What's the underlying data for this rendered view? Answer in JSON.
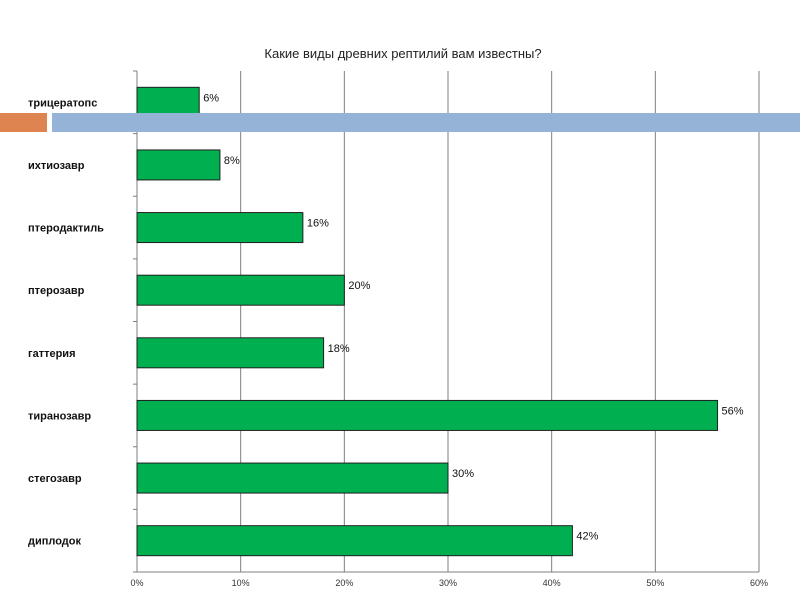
{
  "chart_data": {
    "type": "bar",
    "orientation": "horizontal",
    "title": "Какие виды древних рептилий вам известны?",
    "categories": [
      "трицератопс",
      "ихтиозавр",
      "птеродактиль",
      "птерозавр",
      "гаттерия",
      "тиранозавр",
      "стегозавр",
      "диплодок"
    ],
    "values": [
      6,
      8,
      16,
      20,
      18,
      56,
      30,
      42
    ],
    "value_labels": [
      "6%",
      "8%",
      "16%",
      "20%",
      "18%",
      "56%",
      "30%",
      "42%"
    ],
    "x_ticks": [
      "0%",
      "10%",
      "20%",
      "30%",
      "40%",
      "50%",
      "60%"
    ],
    "xlim": [
      0,
      60
    ],
    "grid": true,
    "bar_color": "#00b050",
    "bar_edge_color": "#1f1f1f",
    "grid_color": "#7f7f7f"
  },
  "decor": {
    "accent_orange": "#dd8451",
    "accent_blue": "#95b3d7"
  }
}
